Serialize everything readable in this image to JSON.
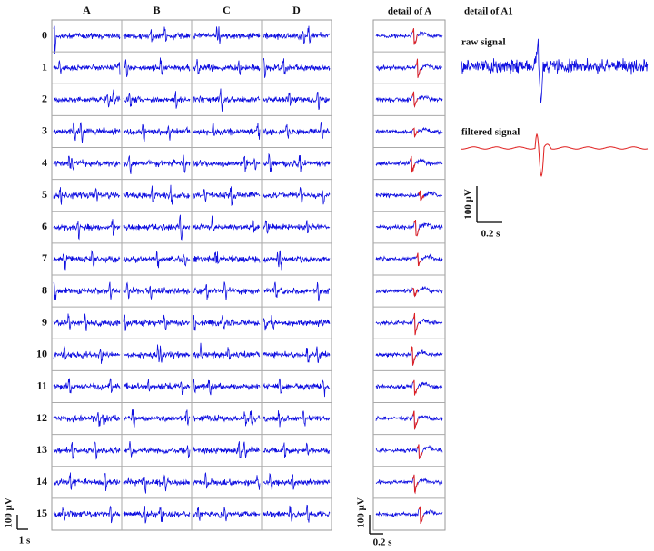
{
  "grid": {
    "columns": [
      "A",
      "B",
      "C",
      "D"
    ],
    "rows": [
      "0",
      "1",
      "2",
      "3",
      "4",
      "5",
      "6",
      "7",
      "8",
      "9",
      "10",
      "11",
      "12",
      "13",
      "14",
      "15"
    ],
    "scale_bar": {
      "vertical": "100 µV",
      "horizontal": "1 s"
    }
  },
  "detail": {
    "title": "detail of A",
    "scale_bar": {
      "vertical": "100 µV",
      "horizontal": "0.2 s"
    }
  },
  "detail_a1": {
    "title": "detail of A1",
    "raw_label": "raw signal",
    "filtered_label": "filtered signal",
    "scale_bar": {
      "vertical": "100 µV",
      "horizontal": "0.2 s"
    }
  }
}
